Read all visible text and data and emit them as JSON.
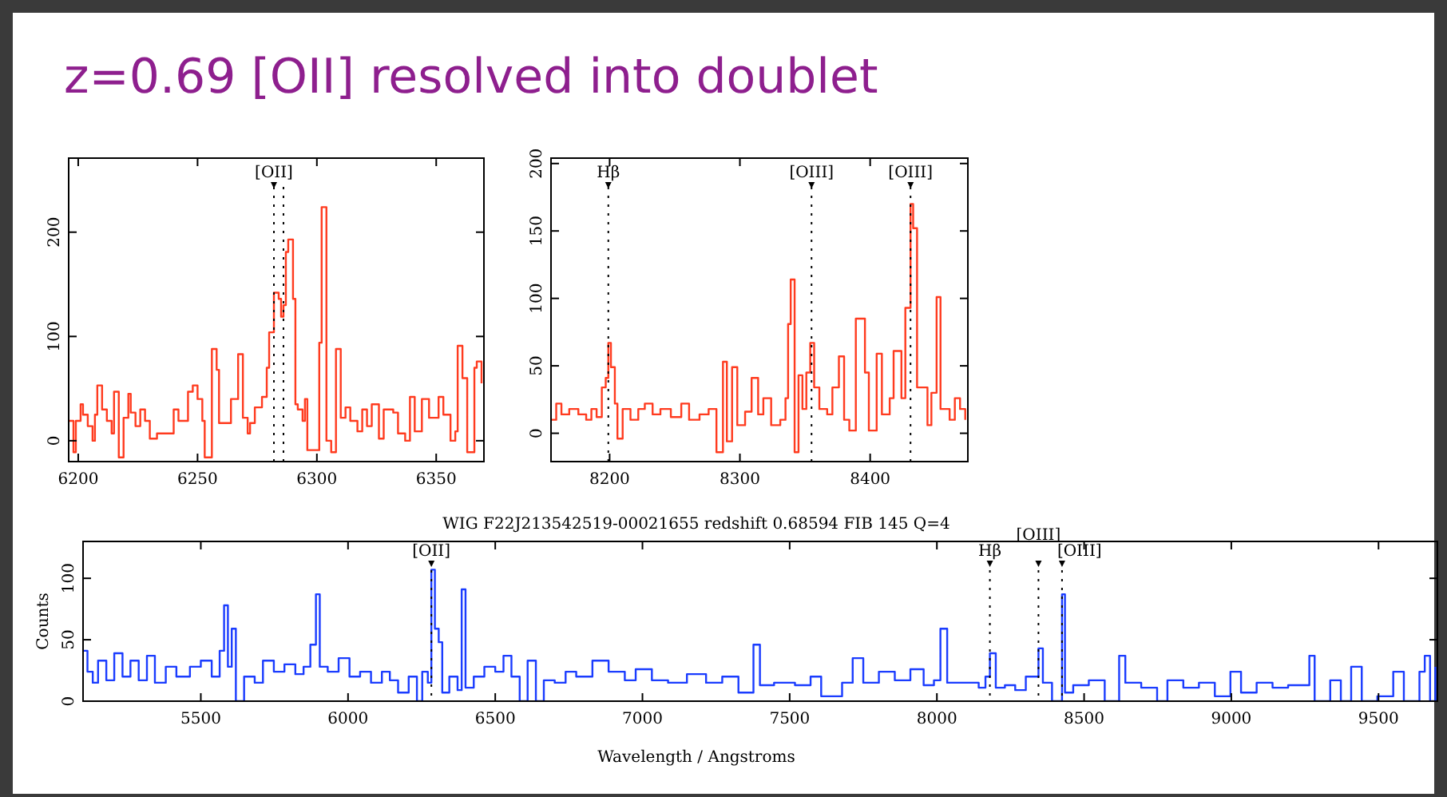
{
  "chart_data": [
    {
      "type": "other",
      "title": "z=0.69 [OII] resolved into doublet"
    },
    {
      "type": "step",
      "xlim": [
        6196,
        6370
      ],
      "ylim": [
        -20,
        271
      ],
      "xticks": [
        6200,
        6250,
        6300,
        6350
      ],
      "yticks": [
        0,
        100,
        200
      ],
      "grid": false,
      "series": [
        {
          "color": "#ff3b1f",
          "x": [
            6196,
            6198,
            6199,
            6201,
            6202,
            6204,
            6206,
            6207,
            6208,
            6210,
            6212,
            6214,
            6215,
            6217,
            6219,
            6221,
            6222,
            6224,
            6226,
            6228,
            6230,
            6233,
            6234,
            6237,
            6240,
            6242,
            6246,
            6248,
            6250,
            6252,
            6253,
            6256,
            6258,
            6259,
            6262,
            6264,
            6267,
            6269,
            6271,
            6272,
            6274,
            6277,
            6279,
            6280,
            6282,
            6284,
            6285,
            6286,
            6287,
            6288,
            6290,
            6291,
            6292,
            6294,
            6295,
            6296,
            6299,
            6301,
            6302,
            6304,
            6306,
            6308,
            6310,
            6312,
            6314,
            6317,
            6319,
            6321,
            6323,
            6326,
            6328,
            6330,
            6332,
            6334,
            6337,
            6339,
            6341,
            6344,
            6347,
            6348,
            6351,
            6353,
            6356,
            6358,
            6359,
            6361,
            6363,
            6366,
            6367,
            6369
          ],
          "values": [
            19,
            -11,
            19,
            35,
            25,
            14,
            0,
            25,
            53,
            30,
            19,
            7,
            47,
            -16,
            22,
            45,
            27,
            14,
            30,
            19,
            2,
            7,
            null,
            7,
            30,
            19,
            47,
            53,
            40,
            19,
            -16,
            88,
            68,
            17,
            null,
            40,
            83,
            22,
            7,
            17,
            32,
            42,
            70,
            104,
            142,
            136,
            119,
            130,
            181,
            193,
            136,
            35,
            30,
            19,
            40,
            -9,
            null,
            94,
            224,
            0,
            -11,
            88,
            22,
            32,
            19,
            9,
            30,
            14,
            35,
            2,
            30,
            null,
            27,
            7,
            0,
            42,
            9,
            40,
            22,
            null,
            42,
            25,
            0,
            9,
            91,
            60,
            -11,
            70,
            76,
            55
          ]
        }
      ],
      "ref_lines": [
        {
          "axis": "x",
          "value": 6282,
          "label": "[OII]",
          "line_style": "dotted"
        },
        {
          "axis": "x",
          "value": 6286,
          "line_style": "dotted"
        }
      ]
    },
    {
      "type": "step",
      "xlim": [
        8155,
        8475
      ],
      "ylim": [
        -21,
        204
      ],
      "xticks": [
        8200,
        8300,
        8400
      ],
      "yticks": [
        0,
        50,
        100,
        150,
        200
      ],
      "grid": false,
      "series": [
        {
          "color": "#ff3b1f",
          "x": [
            8155,
            8159,
            8163,
            8169,
            8176,
            8182,
            8186,
            8190,
            8194,
            8197,
            8199,
            8201,
            8204,
            8206,
            8210,
            8216,
            8222,
            8227,
            8233,
            8239,
            8247,
            8255,
            8261,
            8269,
            8276,
            8282,
            8287,
            8290,
            8294,
            8298,
            8304,
            8309,
            8314,
            8318,
            8324,
            8331,
            8335,
            8337,
            8339,
            8342,
            8345,
            8348,
            8351,
            8354,
            8357,
            8361,
            8367,
            8371,
            8376,
            8380,
            8384,
            8389,
            8392,
            8396,
            8399,
            8405,
            8409,
            8415,
            8418,
            8422,
            8424,
            8427,
            8431,
            8433,
            8436,
            8440,
            8444,
            8447,
            8451,
            8454,
            8457,
            8461,
            8465,
            8469,
            8473
          ],
          "values": [
            10,
            22,
            14,
            18,
            14,
            10,
            18,
            12,
            34,
            41,
            67,
            49,
            22,
            -4,
            18,
            10,
            18,
            22,
            14,
            18,
            12,
            22,
            10,
            14,
            18,
            -14,
            53,
            -6,
            49,
            6,
            16,
            41,
            14,
            26,
            6,
            10,
            26,
            81,
            114,
            -14,
            43,
            18,
            45,
            67,
            34,
            18,
            14,
            34,
            57,
            10,
            2,
            85,
            null,
            45,
            2,
            59,
            14,
            26,
            61,
            null,
            26,
            93,
            170,
            152,
            34,
            null,
            6,
            30,
            101,
            18,
            null,
            10,
            26,
            18,
            10
          ]
        }
      ],
      "ref_lines": [
        {
          "axis": "x",
          "value": 8199,
          "label": "Hβ",
          "line_style": "dotted"
        },
        {
          "axis": "x",
          "value": 8355,
          "label": "[OIII]",
          "line_style": "dotted"
        },
        {
          "axis": "x",
          "value": 8431,
          "label": "[OIII]",
          "line_style": "dotted"
        }
      ]
    },
    {
      "type": "step",
      "title": "WIG F22J213542519-00021655 redshift 0.68594  FIB 145 Q=4",
      "xlabel": "Wavelength / Angstroms",
      "ylabel": "Counts",
      "xlim": [
        5100,
        9700
      ],
      "ylim": [
        0,
        130
      ],
      "xticks": [
        5500,
        6000,
        6500,
        7000,
        7500,
        8000,
        8500,
        9000,
        9500
      ],
      "yticks": [
        0,
        50,
        100
      ],
      "grid": false,
      "series": [
        {
          "color": "#1a3cff",
          "x": [
            5100,
            5115,
            5133,
            5151,
            5179,
            5206,
            5234,
            5261,
            5289,
            5317,
            5344,
            5381,
            5417,
            5463,
            5500,
            5537,
            5564,
            5579,
            5592,
            5605,
            5619,
            5647,
            5683,
            5711,
            5748,
            5784,
            5821,
            5849,
            5872,
            5891,
            5904,
            5931,
            5968,
            6005,
            6041,
            6078,
            6115,
            6142,
            6170,
            6206,
            6234,
            6252,
            6271,
            6283,
            6295,
            6308,
            6320,
            6344,
            6372,
            6386,
            6399,
            6427,
            6463,
            6500,
            6528,
            6555,
            6583,
            6610,
            6638,
            6665,
            6702,
            6739,
            6775,
            6830,
            6885,
            6940,
            6977,
            7032,
            7087,
            7151,
            7216,
            7271,
            7326,
            7377,
            7399,
            7447,
            7518,
            7571,
            7607,
            7678,
            7714,
            7750,
            7803,
            7857,
            7910,
            7955,
            7990,
            8012,
            8035,
            8088,
            8142,
            8165,
            8180,
            8200,
            8231,
            8266,
            8302,
            8345,
            8360,
            8391,
            8425,
            8435,
            8463,
            8516,
            8570,
            8619,
            8640,
            8694,
            8748,
            8783,
            8837,
            8890,
            8944,
            8997,
            9033,
            9086,
            9140,
            9193,
            9265,
            9283,
            9336,
            9372,
            9407,
            9443,
            9496,
            9550,
            9586,
            9639,
            9657,
            9675,
            9693
          ],
          "values": [
            41,
            24,
            15,
            33,
            17,
            39,
            20,
            33,
            17,
            37,
            15,
            28,
            20,
            28,
            33,
            20,
            41,
            78,
            28,
            59,
            0,
            20,
            15,
            33,
            24,
            30,
            22,
            28,
            46,
            87,
            28,
            24,
            35,
            20,
            24,
            15,
            24,
            17,
            7,
            20,
            0,
            24,
            15,
            107,
            59,
            48,
            7,
            20,
            9,
            91,
            11,
            20,
            28,
            24,
            37,
            20,
            0,
            33,
            0,
            17,
            15,
            24,
            20,
            33,
            24,
            17,
            26,
            17,
            15,
            22,
            15,
            20,
            7,
            46,
            13,
            15,
            13,
            20,
            4,
            15,
            35,
            15,
            24,
            17,
            26,
            13,
            17,
            59,
            15,
            15,
            11,
            20,
            39,
            11,
            13,
            9,
            20,
            43,
            15,
            0,
            87,
            7,
            13,
            17,
            0,
            37,
            15,
            11,
            0,
            17,
            11,
            15,
            4,
            24,
            7,
            15,
            11,
            13,
            37,
            0,
            17,
            0,
            28,
            0,
            4,
            24,
            0,
            24,
            37,
            0,
            28
          ]
        }
      ],
      "ref_lines": [
        {
          "axis": "x",
          "value": 6283,
          "label": "[OII]",
          "line_style": "dotted"
        },
        {
          "axis": "x",
          "value": 8180,
          "label": "Hβ",
          "line_style": "dotted"
        },
        {
          "axis": "x",
          "value": 8345,
          "label": "[OIII]",
          "line_style": "dotted"
        },
        {
          "axis": "x",
          "value": 8425,
          "label": "[OIII]",
          "line_style": "dotted"
        }
      ]
    }
  ]
}
